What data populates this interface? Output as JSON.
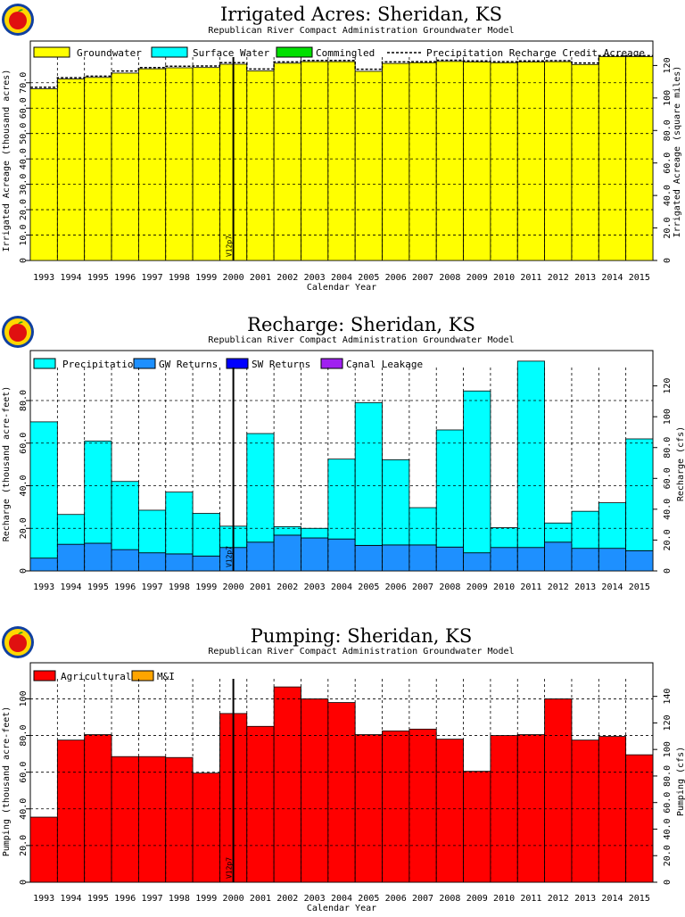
{
  "years": [
    "1993",
    "1994",
    "1995",
    "1996",
    "1997",
    "1998",
    "1999",
    "2000",
    "2001",
    "2002",
    "2003",
    "2004",
    "2005",
    "2006",
    "2007",
    "2008",
    "2009",
    "2010",
    "2011",
    "2012",
    "2013",
    "2014",
    "2015"
  ],
  "marker_label": "V12p7",
  "colors": {
    "groundwater": "#ffff00",
    "surface_water": "#00ffff",
    "commingled": "#00e000",
    "precipitation": "#00ffff",
    "gw_returns": "#1e90ff",
    "sw_returns": "#0000ff",
    "canal_leakage": "#a020f0",
    "agricultural": "#ff0000",
    "mi": "#ffa500"
  },
  "chart_data": [
    {
      "type": "bar",
      "stacked": true,
      "title": "Irrigated Acres: Sheridan, KS",
      "subtitle": "Republican River Compact Administration Groundwater Model",
      "xlabel": "Calendar Year",
      "ylabel": "Irrigated Acreage (thousand acres)",
      "ylabel_right": "Irrigated Acreage (square miles)",
      "ylim": [
        0,
        78
      ],
      "yticks": [
        0,
        10,
        20,
        30,
        40,
        50,
        60,
        70
      ],
      "ytick_labels": [
        "0",
        "10.0",
        "20.0",
        "30.0",
        "40.0",
        "50.0",
        "60.0",
        "70.0"
      ],
      "right_ticks": [
        0,
        20,
        40,
        60,
        80,
        100,
        120
      ],
      "right_tick_labels": [
        "0",
        "20.0",
        "40.0",
        "60.0",
        "80.0",
        "100",
        "120"
      ],
      "right_scale": 1.5625,
      "grid": true,
      "legend_position": "top",
      "legend": [
        "Groundwater",
        "Surface Water",
        "Commingled",
        "Precipitation Recharge Credit Acreage"
      ],
      "series": [
        {
          "name": "Groundwater",
          "color_key": "groundwater",
          "values": [
            67.6,
            71.5,
            72.1,
            73.8,
            75.5,
            75.9,
            76.0,
            77.3,
            74.7,
            77.7,
            78.3,
            78.3,
            74.5,
            77.6,
            77.9,
            78.4,
            78.2,
            77.9,
            78.2,
            78.3,
            77.2,
            80.3,
            80.3
          ]
        },
        {
          "name": "Surface Water",
          "color_key": "surface_water",
          "values": [
            0,
            0,
            0,
            0,
            0,
            0,
            0,
            0,
            0,
            0,
            0,
            0,
            0,
            0,
            0,
            0,
            0,
            0,
            0,
            0,
            0,
            0,
            0
          ]
        },
        {
          "name": "Commingled",
          "color_key": "commingled",
          "values": [
            0,
            0,
            0,
            0,
            0,
            0,
            0,
            0,
            0,
            0,
            0,
            0,
            0,
            0,
            0,
            0,
            0,
            0,
            0,
            0,
            0,
            0,
            0
          ]
        }
      ],
      "line_series": {
        "name": "Precipitation Recharge Credit Acreage",
        "values": [
          68.2,
          72.0,
          72.6,
          74.6,
          76.0,
          76.5,
          76.6,
          77.9,
          75.4,
          78.2,
          78.8,
          78.8,
          75.3,
          78.2,
          78.3,
          78.9,
          78.6,
          78.3,
          78.6,
          78.7,
          77.8,
          80.7,
          80.7
        ]
      }
    },
    {
      "type": "bar",
      "stacked": true,
      "title": "Recharge: Sheridan, KS",
      "subtitle": "Republican River Compact Administration Groundwater Model",
      "xlabel": "",
      "ylabel": "Recharge (thousand acre-feet)",
      "ylabel_right": "Recharge (cfs)",
      "ylim": [
        0,
        93
      ],
      "yticks": [
        0,
        20,
        40,
        60,
        80
      ],
      "ytick_labels": [
        "0",
        "20.0",
        "40.0",
        "60.0",
        "80.0"
      ],
      "right_ticks": [
        0,
        20,
        40,
        60,
        80,
        100,
        120
      ],
      "right_tick_labels": [
        "0",
        "20.0",
        "40.0",
        "60.0",
        "80.0",
        "100",
        "120"
      ],
      "right_scale": 1.3812,
      "grid": true,
      "legend_position": "top",
      "legend": [
        "Precipitation",
        "GW Returns",
        "SW Returns",
        "Canal Leakage"
      ],
      "series": [
        {
          "name": "GW Returns",
          "color_key": "gw_returns",
          "values": [
            6.0,
            12.5,
            13.0,
            10.0,
            8.5,
            8.0,
            7.0,
            11.0,
            13.5,
            16.8,
            15.5,
            15.0,
            12.0,
            12.2,
            12.2,
            11.2,
            8.5,
            11.0,
            11.0,
            13.5,
            10.6,
            10.6,
            9.5
          ]
        },
        {
          "name": "SW Returns",
          "color_key": "sw_returns",
          "values": [
            0,
            0,
            0,
            0,
            0,
            0,
            0,
            0,
            0,
            0,
            0,
            0,
            0,
            0,
            0,
            0,
            0,
            0,
            0,
            0,
            0,
            0,
            0
          ]
        },
        {
          "name": "Canal Leakage",
          "color_key": "canal_leakage",
          "values": [
            0,
            0,
            0,
            0,
            0,
            0,
            0,
            0,
            0,
            0,
            0,
            0,
            0,
            0,
            0,
            0,
            0,
            0,
            0,
            0,
            0,
            0,
            0
          ]
        },
        {
          "name": "Precipitation",
          "color_key": "precipitation",
          "values": [
            64.0,
            14.0,
            48.0,
            32.0,
            20.0,
            29.0,
            20.0,
            10.0,
            51.0,
            4.0,
            4.5,
            37.5,
            67.0,
            40.0,
            17.5,
            55.0,
            76.0,
            9.3,
            87.5,
            9.0,
            17.4,
            21.4,
            52.5
          ]
        }
      ]
    },
    {
      "type": "bar",
      "stacked": true,
      "title": "Pumping: Sheridan, KS",
      "subtitle": "Republican River Compact Administration Groundwater Model",
      "xlabel": "Calendar Year",
      "ylabel": "Pumping (thousand acre-feet)",
      "ylabel_right": "Pumping (cfs)",
      "ylim": [
        0,
        108
      ],
      "yticks": [
        0,
        20,
        40,
        60,
        80,
        100
      ],
      "ytick_labels": [
        "0",
        "20.0",
        "40.0",
        "60.0",
        "80.0",
        "100"
      ],
      "right_ticks": [
        0,
        20,
        40,
        60,
        80,
        100,
        120,
        140
      ],
      "right_tick_labels": [
        "0",
        "20.0",
        "40.0",
        "60.0",
        "80.0",
        "100",
        "120",
        "140"
      ],
      "right_scale": 1.3812,
      "grid": true,
      "legend_position": "top",
      "legend": [
        "Agricultural",
        "M&I"
      ],
      "series": [
        {
          "name": "Agricultural",
          "color_key": "agricultural",
          "values": [
            35.5,
            77.5,
            80.5,
            68.5,
            68.5,
            68.0,
            59.5,
            92.0,
            85.0,
            106.5,
            100.0,
            98.0,
            80.5,
            82.5,
            83.5,
            78.0,
            60.5,
            80.0,
            80.5,
            100.0,
            77.5,
            79.5,
            69.5
          ]
        },
        {
          "name": "M&I",
          "color_key": "mi",
          "values": [
            0,
            0,
            0,
            0,
            0,
            0,
            0,
            0,
            0,
            0,
            0,
            0,
            0,
            0,
            0,
            0,
            0,
            0,
            0,
            0,
            0,
            0,
            0
          ]
        }
      ]
    }
  ]
}
